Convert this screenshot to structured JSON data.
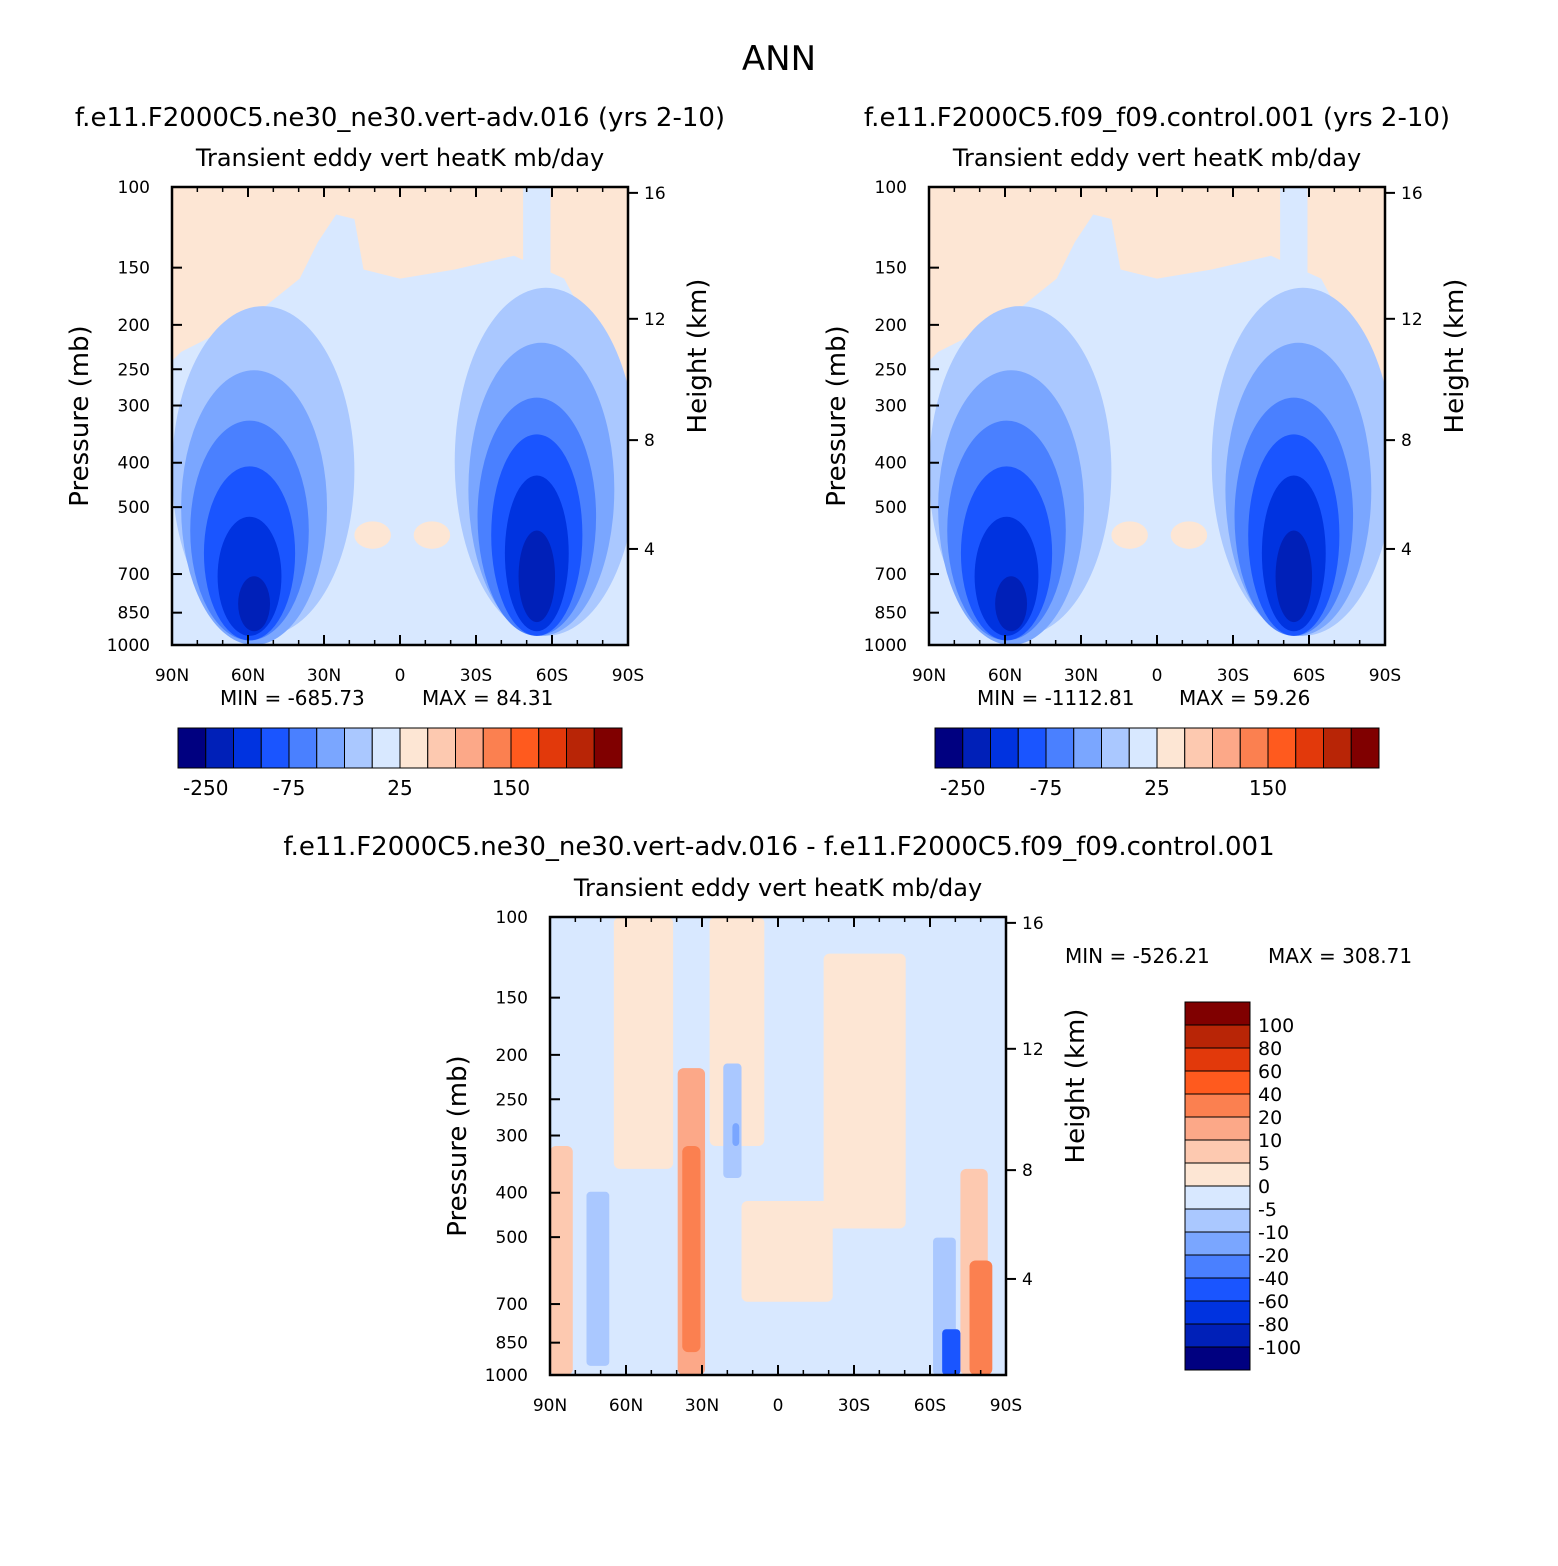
{
  "page_title": "ANN",
  "chart_data": [
    {
      "type": "heatmap",
      "title": "f.e11.F2000C5.ne30_ne30.vert-adv.016 (yrs 2-10)",
      "subtitle": "Transient eddy vert heatK mb/day",
      "ylabel": "Pressure (mb)",
      "y2label": "Height (km)",
      "x_ticks": [
        "90N",
        "60N",
        "30N",
        "0",
        "30S",
        "60S",
        "90S"
      ],
      "y_ticks": [
        100,
        150,
        200,
        250,
        300,
        400,
        500,
        700,
        850,
        1000
      ],
      "y2_ticks": [
        16,
        12,
        8,
        4
      ],
      "min_label": "MIN = -685.73",
      "max_label": "MAX = 84.31",
      "colorbar": {
        "orientation": "horizontal",
        "labels": [
          "-250",
          "-75",
          "25",
          "150"
        ],
        "colors": [
          "#000080",
          "#0020b8",
          "#0033e0",
          "#1a55ff",
          "#4a80ff",
          "#7aa6ff",
          "#aac8ff",
          "#d8e8ff",
          "#fde6d4",
          "#fdc9b0",
          "#fca888",
          "#fb8050",
          "#ff5a1e",
          "#e2390b",
          "#b82506",
          "#800000"
        ]
      }
    },
    {
      "type": "heatmap",
      "title": "f.e11.F2000C5.f09_f09.control.001 (yrs 2-10)",
      "subtitle": "Transient eddy vert heatK mb/day",
      "ylabel": "Pressure (mb)",
      "y2label": "Height (km)",
      "x_ticks": [
        "90N",
        "60N",
        "30N",
        "0",
        "30S",
        "60S",
        "90S"
      ],
      "y_ticks": [
        100,
        150,
        200,
        250,
        300,
        400,
        500,
        700,
        850,
        1000
      ],
      "y2_ticks": [
        16,
        12,
        8,
        4
      ],
      "min_label": "MIN = -1112.81",
      "max_label": "MAX = 59.26",
      "colorbar": {
        "orientation": "horizontal",
        "labels": [
          "-250",
          "-75",
          "25",
          "150"
        ],
        "colors": [
          "#000080",
          "#0020b8",
          "#0033e0",
          "#1a55ff",
          "#4a80ff",
          "#7aa6ff",
          "#aac8ff",
          "#d8e8ff",
          "#fde6d4",
          "#fdc9b0",
          "#fca888",
          "#fb8050",
          "#ff5a1e",
          "#e2390b",
          "#b82506",
          "#800000"
        ]
      }
    },
    {
      "type": "heatmap",
      "title": "f.e11.F2000C5.ne30_ne30.vert-adv.016 - f.e11.F2000C5.f09_f09.control.001",
      "subtitle": "Transient eddy vert heatK mb/day",
      "ylabel": "Pressure (mb)",
      "y2label": "Height (km)",
      "x_ticks": [
        "90N",
        "60N",
        "30N",
        "0",
        "30S",
        "60S",
        "90S"
      ],
      "y_ticks": [
        100,
        150,
        200,
        250,
        300,
        400,
        500,
        700,
        850,
        1000
      ],
      "y2_ticks": [
        16,
        12,
        8,
        4
      ],
      "min_label": "MIN = -526.21",
      "max_label": "MAX = 308.71",
      "colorbar": {
        "orientation": "vertical",
        "labels": [
          "100",
          "80",
          "60",
          "40",
          "20",
          "10",
          "5",
          "0",
          "-5",
          "-10",
          "-20",
          "-40",
          "-60",
          "-80",
          "-100"
        ],
        "colors": [
          "#000080",
          "#0020b8",
          "#0033e0",
          "#1a55ff",
          "#4a80ff",
          "#7aa6ff",
          "#aac8ff",
          "#d8e8ff",
          "#fde6d4",
          "#fdc9b0",
          "#fca888",
          "#fb8050",
          "#ff5a1e",
          "#e2390b",
          "#b82506",
          "#800000"
        ]
      }
    }
  ]
}
